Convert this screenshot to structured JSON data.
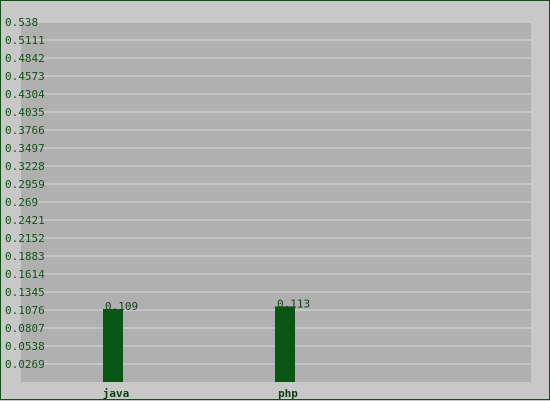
{
  "chart_data": {
    "type": "bar",
    "title": "",
    "xlabel": "",
    "ylabel": "",
    "categories": [
      "java",
      "php"
    ],
    "values": [
      0.109,
      0.113
    ],
    "data_labels": [
      "0.109",
      "0.113"
    ],
    "ylim": [
      0,
      0.538
    ],
    "y_ticks": [
      "0.0269",
      "0.0538",
      "0.0807",
      "0.1076",
      "0.1345",
      "0.1614",
      "0.1883",
      "0.2152",
      "0.2421",
      "0.269",
      "0.2959",
      "0.3228",
      "0.3497",
      "0.3766",
      "0.4035",
      "0.4304",
      "0.4573",
      "0.4842",
      "0.5111",
      "0.538"
    ],
    "grid": true,
    "legend": "none",
    "colors": {
      "bar": "#0b5614",
      "plot_bg": "#b0b0b0",
      "page_bg": "#c8c8c8",
      "gridline": "#d8d8d8",
      "text": "#14501a"
    }
  }
}
